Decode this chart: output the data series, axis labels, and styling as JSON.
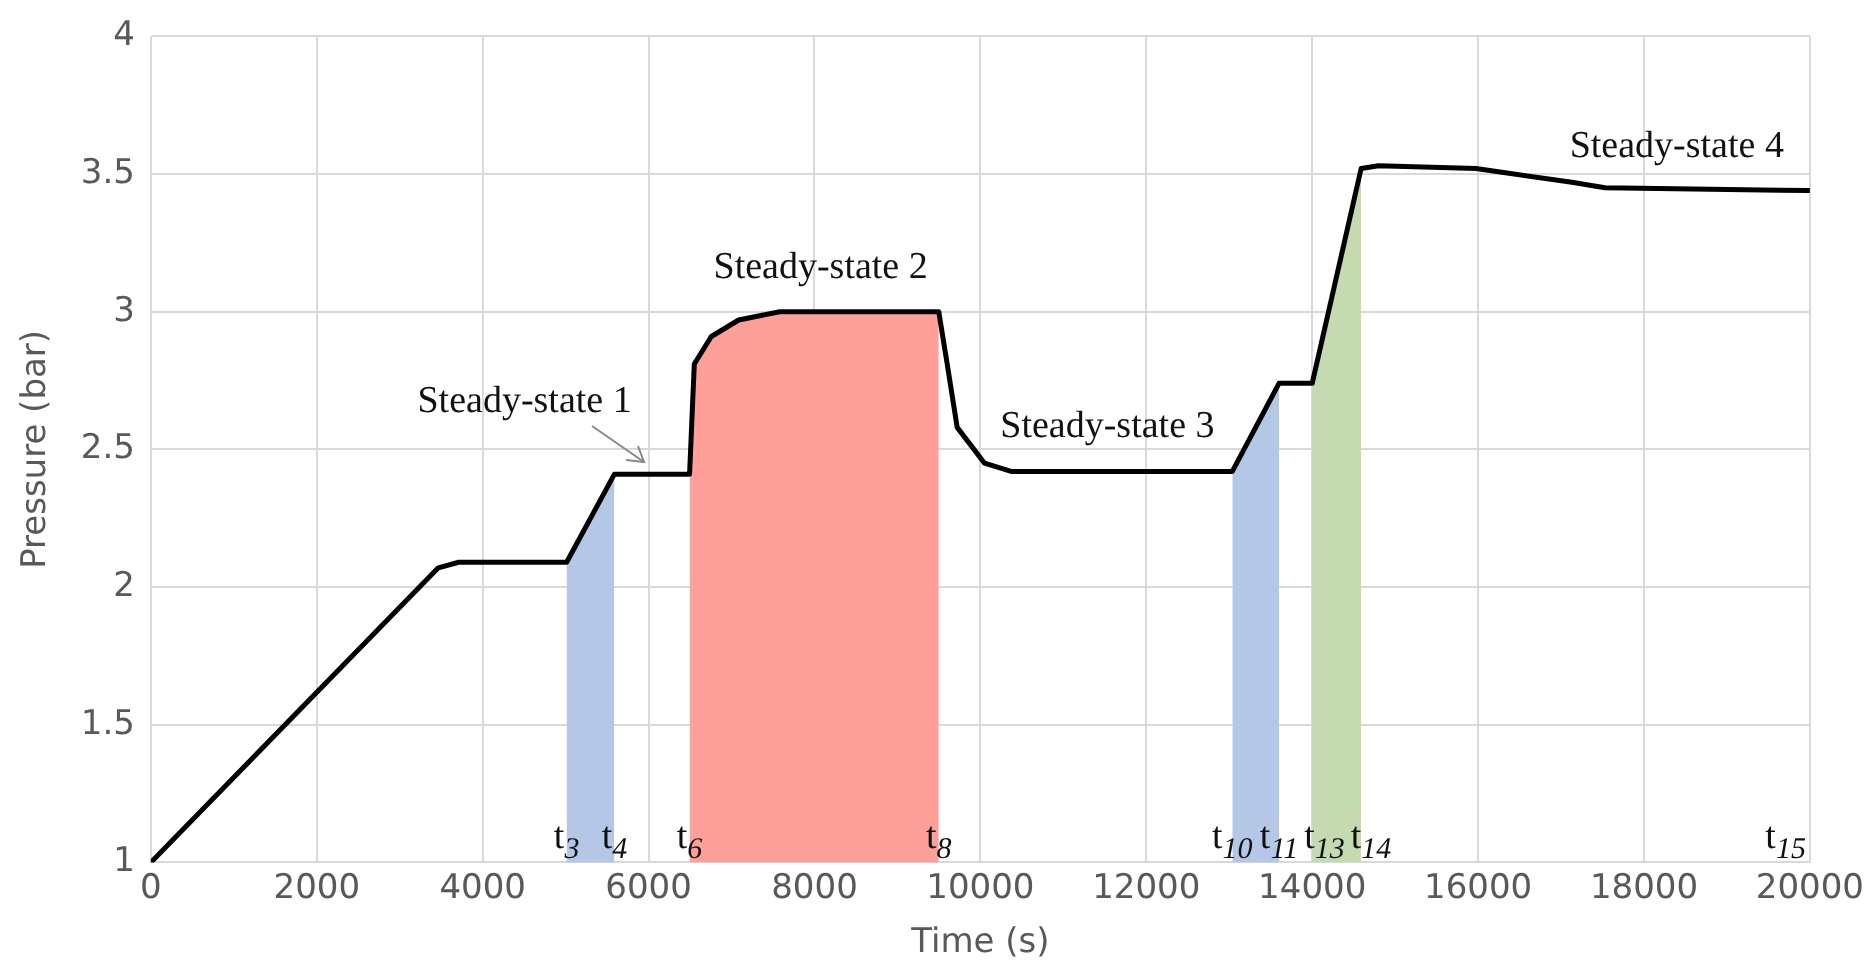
{
  "chart_data": {
    "type": "line",
    "xlabel": "Time (s)",
    "ylabel": "Pressure (bar)",
    "xlim": [
      0,
      20000
    ],
    "xticks": [
      0,
      2000,
      4000,
      6000,
      8000,
      10000,
      12000,
      14000,
      16000,
      18000,
      20000
    ],
    "ylim": [
      1,
      4
    ],
    "yticks": [
      1,
      1.5,
      2,
      2.5,
      3,
      3.5,
      4
    ],
    "grid": true,
    "legend": false,
    "marker": "none",
    "line_style": "solid",
    "series": [
      {
        "type": "area",
        "color": "#b4c7e7",
        "x": [
          5012,
          5588
        ],
        "values": [
          2.09,
          2.41
        ]
      },
      {
        "type": "area",
        "color": "#ff9f99",
        "x": [
          6494,
          6551,
          6756,
          7086,
          7580,
          9498
        ],
        "values": [
          2.41,
          2.81,
          2.91,
          2.97,
          3.0,
          3.0
        ]
      },
      {
        "type": "area",
        "color": "#b4c7e7",
        "x": [
          13037,
          13600
        ],
        "values": [
          2.42,
          2.74
        ]
      },
      {
        "type": "area",
        "color": "#c5dab0",
        "x": [
          14000,
          14590
        ],
        "values": [
          2.74,
          3.52
        ]
      },
      {
        "color": "#000000",
        "x": [
          0,
          3465,
          3711,
          5012,
          5588,
          6494,
          6551,
          6756,
          7086,
          7580,
          9498,
          9600,
          9720,
          10050,
          10370,
          13037,
          13600,
          14000,
          14590,
          14800,
          15975,
          17130,
          17530,
          20000
        ],
        "values": [
          1.0,
          2.07,
          2.09,
          2.09,
          2.41,
          2.41,
          2.81,
          2.91,
          2.97,
          3.0,
          3.0,
          2.81,
          2.58,
          2.45,
          2.42,
          2.42,
          2.74,
          2.74,
          3.52,
          3.53,
          3.52,
          3.47,
          3.45,
          3.44
        ]
      }
    ],
    "annotations": [
      {
        "text": "Steady-state 1",
        "x": 6000,
        "y": 2.41
      },
      {
        "text": "Steady-state 2",
        "x": 8074,
        "y": 3.0
      },
      {
        "text": "Steady-state 3",
        "x": 11531,
        "y": 2.42
      },
      {
        "text": "Steady-state 4",
        "x": 18395,
        "y": 3.44
      },
      {
        "text": "t$_{3}$",
        "x": 5012
      },
      {
        "text": "t$_{4}$",
        "x": 5588
      },
      {
        "text": "t$_{6}$",
        "x": 6494
      },
      {
        "text": "t$_{8}$",
        "x": 9498
      },
      {
        "text": "t$_{10}$",
        "x": 13037
      },
      {
        "text": "t$_{11}$",
        "x": 13600
      },
      {
        "text": "t$_{13}$",
        "x": 14000
      },
      {
        "text": "t$_{14}$",
        "x": 14590
      },
      "t$_{15}$"
    ]
  }
}
